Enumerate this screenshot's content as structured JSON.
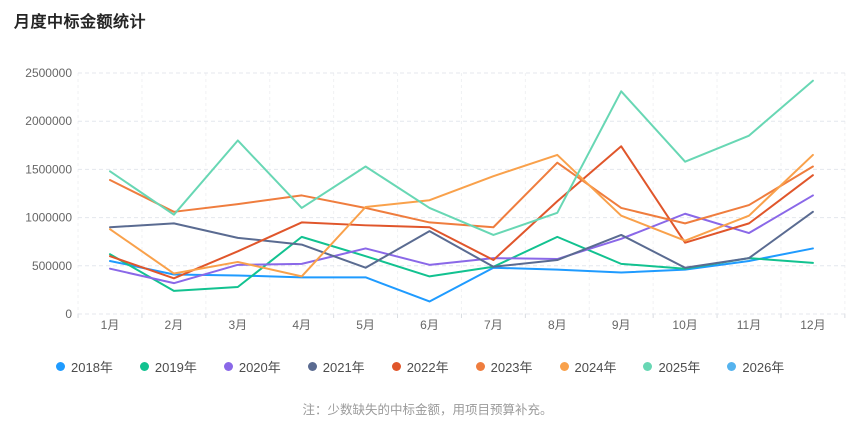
{
  "title": "月度中标金额统计",
  "note": "注：少数缺失的中标金额，用项目预算补充。",
  "chart_data": {
    "type": "line",
    "title": "月度中标金额统计",
    "xlabel": "",
    "ylabel": "",
    "categories": [
      "1月",
      "2月",
      "3月",
      "4月",
      "5月",
      "6月",
      "7月",
      "8月",
      "9月",
      "10月",
      "11月",
      "12月"
    ],
    "ylim": [
      0,
      2500000
    ],
    "yticks": [
      0,
      500000,
      1000000,
      1500000,
      2000000,
      2500000
    ],
    "grid": true,
    "legend_position": "bottom",
    "axis_label_color": "#666666",
    "gridline_color": "#e4e7ed",
    "series": [
      {
        "name": "2018年",
        "color": "#1f9bff",
        "values": [
          550000,
          410000,
          400000,
          380000,
          380000,
          130000,
          480000,
          460000,
          430000,
          460000,
          550000,
          680000
        ]
      },
      {
        "name": "2019年",
        "color": "#12c290",
        "values": [
          620000,
          240000,
          280000,
          800000,
          600000,
          390000,
          490000,
          800000,
          520000,
          470000,
          580000,
          530000
        ]
      },
      {
        "name": "2020年",
        "color": "#8a68e8",
        "values": [
          470000,
          320000,
          510000,
          520000,
          680000,
          510000,
          580000,
          570000,
          780000,
          1040000,
          840000,
          1230000
        ]
      },
      {
        "name": "2021年",
        "color": "#5a6b91",
        "values": [
          900000,
          940000,
          790000,
          720000,
          480000,
          860000,
          490000,
          560000,
          820000,
          480000,
          580000,
          1060000
        ]
      },
      {
        "name": "2022年",
        "color": "#e0562b",
        "values": [
          600000,
          370000,
          650000,
          950000,
          920000,
          900000,
          560000,
          1170000,
          1740000,
          740000,
          940000,
          1440000
        ]
      },
      {
        "name": "2023年",
        "color": "#ef7d3e",
        "values": [
          1390000,
          1060000,
          1140000,
          1230000,
          1100000,
          950000,
          900000,
          1570000,
          1100000,
          940000,
          1130000,
          1530000
        ]
      },
      {
        "name": "2024年",
        "color": "#f9a14b",
        "values": [
          880000,
          420000,
          540000,
          390000,
          1110000,
          1180000,
          1430000,
          1650000,
          1020000,
          760000,
          1020000,
          1650000
        ]
      },
      {
        "name": "2025年",
        "color": "#68d7b4",
        "values": [
          1480000,
          1030000,
          1800000,
          1100000,
          1530000,
          1100000,
          820000,
          1050000,
          2310000,
          1580000,
          1850000,
          2420000
        ]
      },
      {
        "name": "2026年",
        "color": "#55b3ee",
        "values": []
      }
    ]
  }
}
